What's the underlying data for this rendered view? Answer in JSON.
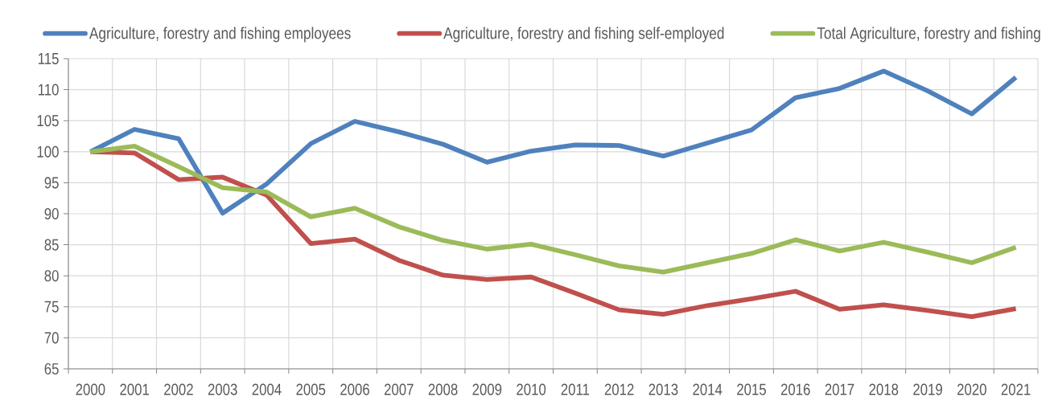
{
  "chart_data": {
    "type": "line",
    "categories": [
      "2000",
      "2001",
      "2002",
      "2003",
      "2004",
      "2005",
      "2006",
      "2007",
      "2008",
      "2009",
      "2010",
      "2011",
      "2012",
      "2013",
      "2014",
      "2015",
      "2016",
      "2017",
      "2018",
      "2019",
      "2020",
      "2021"
    ],
    "series": [
      {
        "name": "Agriculture, forestry and fishing employees",
        "color": "#4f81bd",
        "values": [
          100,
          103.6,
          102.1,
          90.1,
          94.8,
          101.3,
          104.9,
          103.2,
          101.2,
          98.3,
          100.1,
          101.1,
          101.0,
          99.3,
          101.4,
          103.5,
          108.7,
          110.2,
          113.0,
          109.8,
          106.1,
          112.0
        ]
      },
      {
        "name": "Agriculture, forestry and fishing self-employed",
        "color": "#c0504d",
        "values": [
          100,
          99.8,
          95.5,
          95.9,
          93.0,
          85.2,
          85.9,
          82.5,
          80.1,
          79.4,
          79.8,
          77.2,
          74.5,
          73.8,
          75.2,
          76.3,
          77.5,
          74.6,
          75.3,
          74.4,
          73.4,
          74.7
        ]
      },
      {
        "name": "Total Agriculture, forestry and fishing",
        "color": "#9bbb59",
        "values": [
          100,
          100.9,
          97.6,
          94.2,
          93.5,
          89.5,
          90.9,
          87.9,
          85.7,
          84.3,
          85.1,
          83.4,
          81.6,
          80.6,
          82.1,
          83.6,
          85.8,
          84.0,
          85.4,
          83.8,
          82.1,
          84.6
        ]
      }
    ],
    "ylim": [
      65,
      115
    ],
    "yticks": [
      65,
      70,
      75,
      80,
      85,
      90,
      95,
      100,
      105,
      110,
      115
    ],
    "grid": true,
    "legend": "top",
    "line_style": "solid",
    "marker": "none"
  }
}
